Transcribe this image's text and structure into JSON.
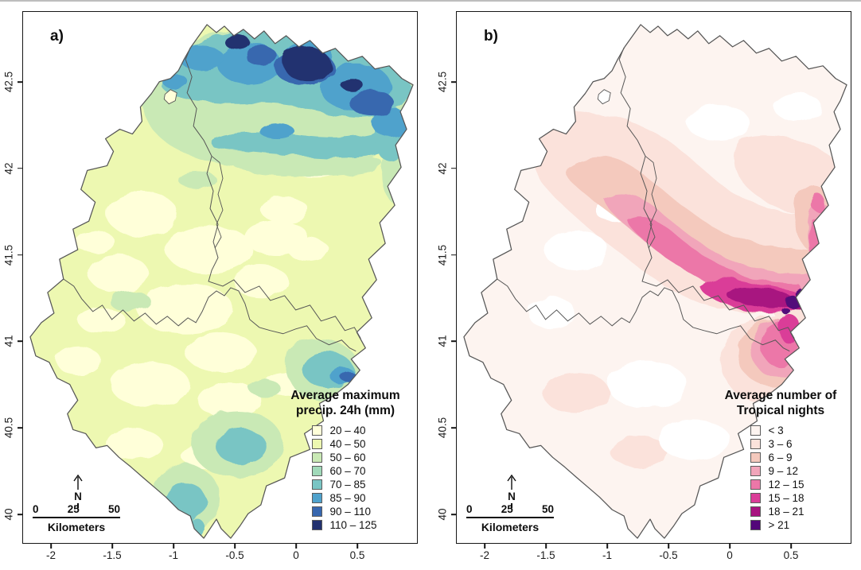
{
  "figure": {
    "background": "#ffffff",
    "top_border_color": "#bdbdbd",
    "frame_color": "#161616",
    "map_border_color": "#565656"
  },
  "axes": {
    "x_ticks": [
      "-2",
      "-1.5",
      "-1",
      "-0.5",
      "0",
      "0.5"
    ],
    "y_ticks": [
      "42.5",
      "42",
      "41.5",
      "41",
      "40.5",
      "40"
    ]
  },
  "panels": [
    {
      "label": "a)",
      "north_label": "N",
      "scalebar": {
        "tick_labels": [
          "0",
          "25",
          "50"
        ],
        "unit_label": "Kilometers"
      },
      "legend": {
        "title_line1": "Average maximum",
        "title_line2": "precip. 24h (mm)",
        "items": [
          {
            "label": "20 – 40",
            "color": "#ffffd9"
          },
          {
            "label": "40 – 50",
            "color": "#edf8b1"
          },
          {
            "label": "50 – 60",
            "color": "#c9e9b5"
          },
          {
            "label": "60 – 70",
            "color": "#a0d9b9"
          },
          {
            "label": "70 – 85",
            "color": "#79c5c4"
          },
          {
            "label": "85 – 90",
            "color": "#4fa2cc"
          },
          {
            "label": "90 – 110",
            "color": "#3767af"
          },
          {
            "label": "110 – 125",
            "color": "#22316f"
          }
        ]
      }
    },
    {
      "label": "b)",
      "north_label": "N",
      "scalebar": {
        "tick_labels": [
          "0",
          "25",
          "50"
        ],
        "unit_label": "Kilometers"
      },
      "legend": {
        "title_line1": "Average number of",
        "title_line2": "Tropical nights",
        "items": [
          {
            "label": "< 3",
            "color": "#fdf4f0"
          },
          {
            "label": "3 – 6",
            "color": "#fbe2db"
          },
          {
            "label": "6 – 9",
            "color": "#f4c9bd"
          },
          {
            "label": "9 – 12",
            "color": "#f1a5ba"
          },
          {
            "label": "12 – 15",
            "color": "#ec77a8"
          },
          {
            "label": "15 – 18",
            "color": "#da3d98"
          },
          {
            "label": "18 – 21",
            "color": "#a81380"
          },
          {
            "label": "> 21",
            "color": "#53077a"
          }
        ]
      }
    }
  ]
}
